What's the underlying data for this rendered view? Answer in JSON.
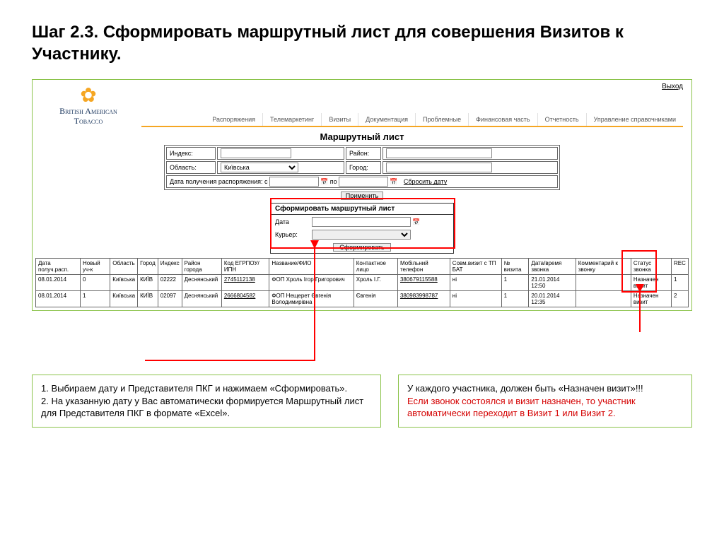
{
  "slide": {
    "title": "Шаг 2.3. Сформировать маршрутный лист для совершения Визитов к Участнику."
  },
  "app": {
    "logo_line1": "British American",
    "logo_line2": "Tobacco",
    "exit": "Выход",
    "nav": [
      "Распоряжения",
      "Телемаркетинг",
      "Визиты",
      "Документация",
      "Проблемные",
      "Финансовая часть",
      "Отчетность",
      "Управление справочниками"
    ],
    "page_title": "Маршрутный лист"
  },
  "filter": {
    "index": "Индекс:",
    "region": "Район:",
    "oblast": "Область:",
    "oblast_value": "Київська",
    "city": "Город:",
    "dates_label": "Дата получения распоряжения:",
    "from": "с",
    "to": "по",
    "reset": "Сбросить дату",
    "apply": "Применить"
  },
  "popup": {
    "title": "Сформировать маршрутный лист",
    "date": "Дата",
    "courier": "Курьер:",
    "submit": "Сформировать"
  },
  "table": {
    "columns": [
      "Дата получ.расп.",
      "Новый уч-к",
      "Область",
      "Город",
      "Индекс",
      "Район города",
      "Код ЕГРПОУ/ ИПН",
      "Название/ФИО",
      "Контактное лицо",
      "Мобільний телефон",
      "Совм.визит с ТП БАТ",
      "№ визита",
      "Дата/время звонка",
      "Комментарий к звонку",
      "Статус звонка",
      "REC"
    ],
    "rows": [
      [
        "08.01.2014",
        "0",
        "Київська",
        "КИЇВ",
        "02222",
        "Деснянський",
        "2745112138",
        "ФОП Хроль Ігор Григорович",
        "Хроль І.Г.",
        "380679115588",
        "ні",
        "1",
        "21.01.2014 12:50",
        "",
        "Назначен визит",
        "1"
      ],
      [
        "08.01.2014",
        "1",
        "Київська",
        "КИЇВ",
        "02097",
        "Деснянський",
        "2666804582",
        "ФОП Нещерет Євгенія Володимирівна",
        "Євгенія",
        "380983998787",
        "ні",
        "1",
        "20.01.2014 12:35",
        "",
        "Назначен визит",
        "2"
      ]
    ]
  },
  "info": {
    "left": "1. Выбираем дату и Представителя ПКГ и нажимаем «Сформировать».\n2. На указанную дату у Вас автоматически формируется Маршрутный лист для Представителя ПКГ в формате «Excel».",
    "right_black": "У каждого участника, должен быть «Назначен визит»!!!",
    "right_red": "Если звонок состоялся и визит назначен, то участник автоматически переходит в Визит 1 или Визит 2."
  },
  "colors": {
    "accent_green": "#8bc34a",
    "accent_red": "#ff0000",
    "nav_border": "#f5a623"
  }
}
